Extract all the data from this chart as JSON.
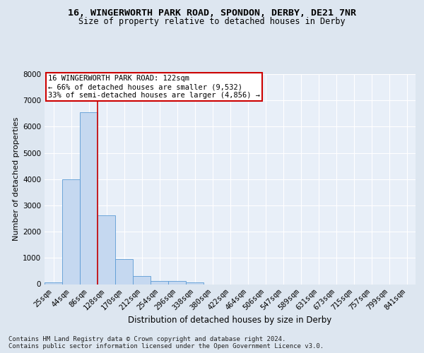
{
  "title1": "16, WINGERWORTH PARK ROAD, SPONDON, DERBY, DE21 7NR",
  "title2": "Size of property relative to detached houses in Derby",
  "xlabel": "Distribution of detached houses by size in Derby",
  "ylabel": "Number of detached properties",
  "footnote": "Contains HM Land Registry data © Crown copyright and database right 2024.\nContains public sector information licensed under the Open Government Licence v3.0.",
  "bin_labels": [
    "25sqm",
    "44sqm",
    "86sqm",
    "128sqm",
    "170sqm",
    "212sqm",
    "254sqm",
    "296sqm",
    "338sqm",
    "380sqm",
    "422sqm",
    "464sqm",
    "506sqm",
    "547sqm",
    "589sqm",
    "631sqm",
    "673sqm",
    "715sqm",
    "757sqm",
    "799sqm",
    "841sqm"
  ],
  "bar_values": [
    75,
    3980,
    6560,
    2620,
    950,
    310,
    130,
    110,
    80,
    0,
    0,
    0,
    0,
    0,
    0,
    0,
    0,
    0,
    0,
    0,
    0
  ],
  "bar_color": "#c5d8f0",
  "bar_edge_color": "#5b9bd5",
  "vline_color": "#cc0000",
  "annotation_text": "16 WINGERWORTH PARK ROAD: 122sqm\n← 66% of detached houses are smaller (9,532)\n33% of semi-detached houses are larger (4,856) →",
  "annotation_box_color": "#ffffff",
  "annotation_box_edge": "#cc0000",
  "ylim": [
    0,
    8000
  ],
  "yticks": [
    0,
    1000,
    2000,
    3000,
    4000,
    5000,
    6000,
    7000,
    8000
  ],
  "bg_color": "#dde6f0",
  "plot_bg_color": "#e8eff8",
  "grid_color": "#ffffff",
  "title1_fontsize": 9.5,
  "title2_fontsize": 8.5,
  "xlabel_fontsize": 8.5,
  "ylabel_fontsize": 8,
  "tick_fontsize": 7.5,
  "annotation_fontsize": 7.5,
  "footnote_fontsize": 6.5
}
